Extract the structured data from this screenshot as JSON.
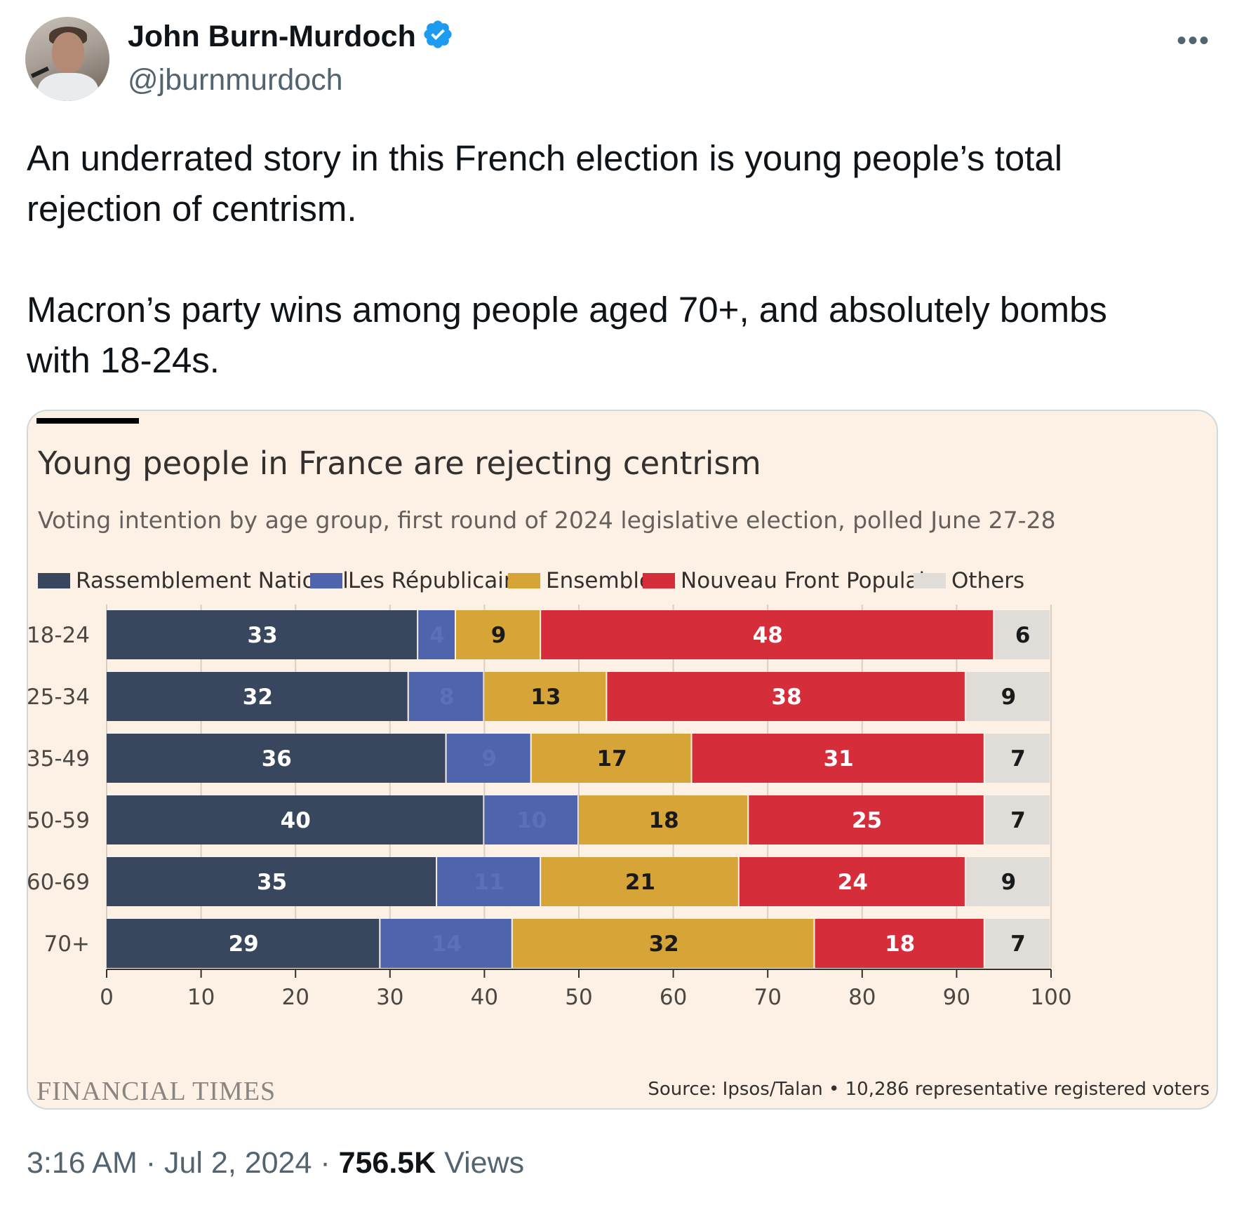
{
  "author": {
    "name": "John Burn-Murdoch",
    "handle": "@jburnmurdoch",
    "verified_color": "#1d9bf0"
  },
  "more_icon": "ellipsis-icon",
  "tweet": {
    "text": "An underrated story in this French election is young people’s total\nrejection of centrism.\n\nMacron’s party wins among people aged 70+, and absolutely bombs\nwith 18-24s."
  },
  "chart_card": {
    "source": "Source: Ipsos/Talan • 10,286 representative registered voters",
    "brand": "FINANCIAL TIMES"
  },
  "chart_data": {
    "type": "bar",
    "orientation": "horizontal",
    "stacked": true,
    "title": "Young people in France are rejecting centrism",
    "subtitle": "Voting intention by age group, first round of 2024 legislative election, polled June 27-28",
    "categories": [
      "18-24",
      "25-34",
      "35-49",
      "50-59",
      "60-69",
      "70+"
    ],
    "series": [
      {
        "name": "Rassemblement National",
        "color": "#38475d",
        "values": [
          33,
          32,
          36,
          40,
          35,
          29
        ]
      },
      {
        "name": "Les Républicains",
        "color": "#4e64ad",
        "values": [
          4,
          8,
          9,
          10,
          11,
          14
        ]
      },
      {
        "name": "Ensemble",
        "color": "#d6a437",
        "values": [
          9,
          13,
          17,
          18,
          21,
          32
        ]
      },
      {
        "name": "Nouveau Front Populaire",
        "color": "#d52d3a",
        "values": [
          48,
          38,
          31,
          25,
          24,
          18
        ]
      },
      {
        "name": "Others",
        "color": "#e0dcd8",
        "values": [
          6,
          9,
          7,
          7,
          9,
          7
        ]
      }
    ],
    "xlim": [
      0,
      100
    ],
    "xticks": [
      "0",
      "10",
      "20",
      "30",
      "40",
      "50",
      "60",
      "70",
      "80",
      "90",
      "100"
    ],
    "grid": true,
    "legend_position": "top"
  },
  "meta": {
    "time": "3:16 AM",
    "date": "Jul 2, 2024",
    "views_count": "756.5K",
    "views_label": "Views"
  }
}
